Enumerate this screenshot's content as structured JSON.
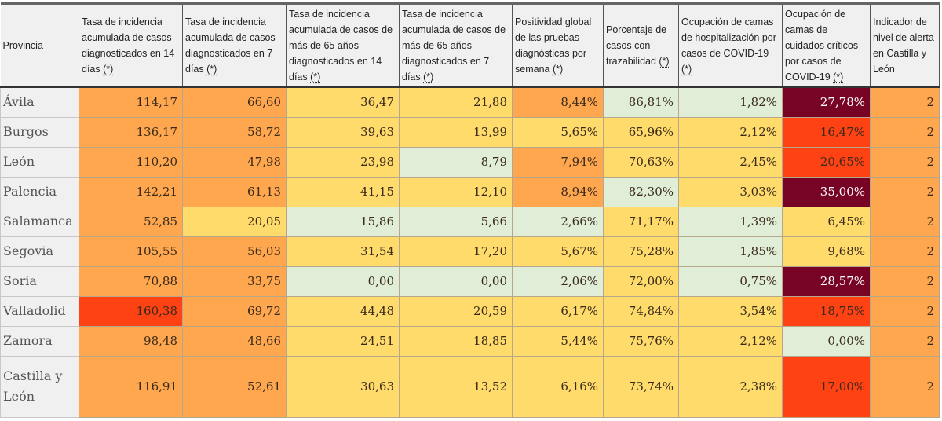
{
  "legend_colors": {
    "green": "#e0eed8",
    "yellow": "#fedb6b",
    "orange": "#fea74e",
    "red": "#fe4214",
    "maroon": "#770424"
  },
  "headers": [
    {
      "text": "Provincia",
      "note": ""
    },
    {
      "text": "Tasa de incidencia acumulada de casos diagnosticados en 14 días ",
      "note": "(*)"
    },
    {
      "text": "Tasa de incidencia acumulada de casos diagnosticados en 7 días ",
      "note": "(*)"
    },
    {
      "text": "Tasa de incidencia acumulada de casos de más de 65 años diagnosticados en 14 días ",
      "note": "(*)"
    },
    {
      "text": "Tasa de incidencia acumulada de casos de más de 65 años diagnosticados en 7 días ",
      "note": "(*)"
    },
    {
      "text": "Positividad global de las pruebas diagnósticas por semana ",
      "note": "(*)"
    },
    {
      "text": "Porcentaje de casos con trazabilidad ",
      "note": "(*)"
    },
    {
      "text": "Ocupación de camas de hospitalización por casos de COVID-19 ",
      "note": "(*)"
    },
    {
      "text": "Ocupación de camas de cuidados críticos por casos de COVID-19 ",
      "note": "(*)"
    },
    {
      "text": "Indicador de nivel de alerta en Castilla y León",
      "note": ""
    }
  ],
  "rows": [
    {
      "provincia": "Ávila",
      "cells": [
        {
          "v": "114,17",
          "c": "orange"
        },
        {
          "v": "66,60",
          "c": "orange"
        },
        {
          "v": "36,47",
          "c": "yellow"
        },
        {
          "v": "21,88",
          "c": "yellow"
        },
        {
          "v": "8,44%",
          "c": "orange"
        },
        {
          "v": "86,81%",
          "c": "green"
        },
        {
          "v": "1,82%",
          "c": "green"
        },
        {
          "v": "27,78%",
          "c": "maroon"
        },
        {
          "v": "2",
          "c": "orange"
        }
      ]
    },
    {
      "provincia": "Burgos",
      "cells": [
        {
          "v": "136,17",
          "c": "orange"
        },
        {
          "v": "58,72",
          "c": "orange"
        },
        {
          "v": "39,63",
          "c": "yellow"
        },
        {
          "v": "13,99",
          "c": "yellow"
        },
        {
          "v": "5,65%",
          "c": "yellow"
        },
        {
          "v": "65,96%",
          "c": "yellow"
        },
        {
          "v": "2,12%",
          "c": "yellow"
        },
        {
          "v": "16,47%",
          "c": "red"
        },
        {
          "v": "2",
          "c": "orange"
        }
      ]
    },
    {
      "provincia": "León",
      "cells": [
        {
          "v": "110,20",
          "c": "orange"
        },
        {
          "v": "47,98",
          "c": "orange"
        },
        {
          "v": "23,98",
          "c": "yellow"
        },
        {
          "v": "8,79",
          "c": "green"
        },
        {
          "v": "7,94%",
          "c": "orange"
        },
        {
          "v": "70,63%",
          "c": "yellow"
        },
        {
          "v": "2,45%",
          "c": "yellow"
        },
        {
          "v": "20,65%",
          "c": "red"
        },
        {
          "v": "2",
          "c": "orange"
        }
      ]
    },
    {
      "provincia": "Palencia",
      "cells": [
        {
          "v": "142,21",
          "c": "orange"
        },
        {
          "v": "61,13",
          "c": "orange"
        },
        {
          "v": "41,15",
          "c": "yellow"
        },
        {
          "v": "12,10",
          "c": "yellow"
        },
        {
          "v": "8,94%",
          "c": "orange"
        },
        {
          "v": "82,30%",
          "c": "green"
        },
        {
          "v": "3,03%",
          "c": "yellow"
        },
        {
          "v": "35,00%",
          "c": "maroon"
        },
        {
          "v": "2",
          "c": "orange"
        }
      ]
    },
    {
      "provincia": "Salamanca",
      "cells": [
        {
          "v": "52,85",
          "c": "orange"
        },
        {
          "v": "20,05",
          "c": "yellow"
        },
        {
          "v": "15,86",
          "c": "green"
        },
        {
          "v": "5,66",
          "c": "green"
        },
        {
          "v": "2,66%",
          "c": "green"
        },
        {
          "v": "71,17%",
          "c": "yellow"
        },
        {
          "v": "1,39%",
          "c": "green"
        },
        {
          "v": "6,45%",
          "c": "yellow"
        },
        {
          "v": "2",
          "c": "orange"
        }
      ]
    },
    {
      "provincia": "Segovia",
      "cells": [
        {
          "v": "105,55",
          "c": "orange"
        },
        {
          "v": "56,03",
          "c": "orange"
        },
        {
          "v": "31,54",
          "c": "yellow"
        },
        {
          "v": "17,20",
          "c": "yellow"
        },
        {
          "v": "5,67%",
          "c": "yellow"
        },
        {
          "v": "75,28%",
          "c": "yellow"
        },
        {
          "v": "1,85%",
          "c": "green"
        },
        {
          "v": "9,68%",
          "c": "yellow"
        },
        {
          "v": "2",
          "c": "orange"
        }
      ]
    },
    {
      "provincia": "Soria",
      "cells": [
        {
          "v": "70,88",
          "c": "orange"
        },
        {
          "v": "33,75",
          "c": "orange"
        },
        {
          "v": "0,00",
          "c": "green"
        },
        {
          "v": "0,00",
          "c": "green"
        },
        {
          "v": "2,06%",
          "c": "green"
        },
        {
          "v": "72,00%",
          "c": "yellow"
        },
        {
          "v": "0,75%",
          "c": "green"
        },
        {
          "v": "28,57%",
          "c": "maroon"
        },
        {
          "v": "2",
          "c": "orange"
        }
      ]
    },
    {
      "provincia": "Valladolid",
      "cells": [
        {
          "v": "160,38",
          "c": "red"
        },
        {
          "v": "69,72",
          "c": "orange"
        },
        {
          "v": "44,48",
          "c": "yellow"
        },
        {
          "v": "20,59",
          "c": "yellow"
        },
        {
          "v": "6,17%",
          "c": "yellow"
        },
        {
          "v": "74,84%",
          "c": "yellow"
        },
        {
          "v": "3,54%",
          "c": "yellow"
        },
        {
          "v": "18,75%",
          "c": "red"
        },
        {
          "v": "2",
          "c": "orange"
        }
      ]
    },
    {
      "provincia": "Zamora",
      "cells": [
        {
          "v": "98,48",
          "c": "orange"
        },
        {
          "v": "48,66",
          "c": "orange"
        },
        {
          "v": "24,51",
          "c": "yellow"
        },
        {
          "v": "18,85",
          "c": "yellow"
        },
        {
          "v": "5,44%",
          "c": "yellow"
        },
        {
          "v": "75,76%",
          "c": "yellow"
        },
        {
          "v": "2,12%",
          "c": "yellow"
        },
        {
          "v": "0,00%",
          "c": "green"
        },
        {
          "v": "2",
          "c": "orange"
        }
      ]
    },
    {
      "provincia": "Castilla y León",
      "total": true,
      "cells": [
        {
          "v": "116,91",
          "c": "orange"
        },
        {
          "v": "52,61",
          "c": "orange"
        },
        {
          "v": "30,63",
          "c": "yellow"
        },
        {
          "v": "13,52",
          "c": "yellow"
        },
        {
          "v": "6,16%",
          "c": "yellow"
        },
        {
          "v": "73,74%",
          "c": "yellow"
        },
        {
          "v": "2,38%",
          "c": "yellow"
        },
        {
          "v": "17,00%",
          "c": "red"
        },
        {
          "v": "2",
          "c": "orange"
        }
      ]
    }
  ]
}
